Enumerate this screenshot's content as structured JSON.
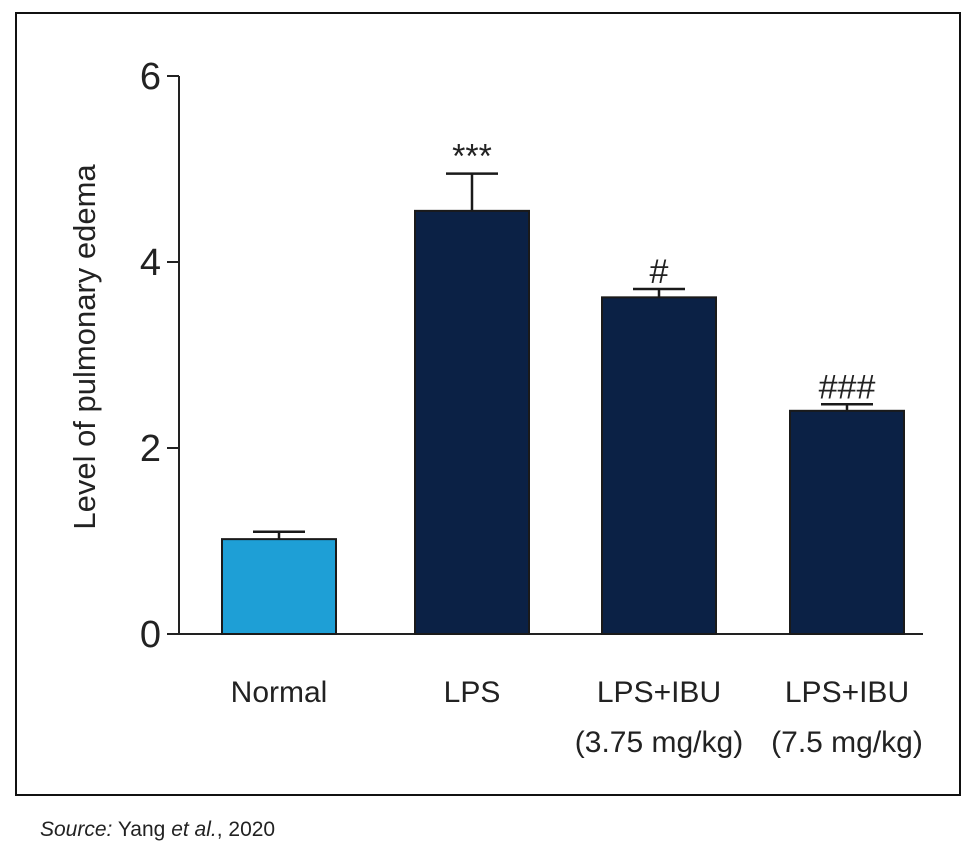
{
  "chart_data": {
    "type": "bar",
    "title": "",
    "xlabel": "",
    "ylabel": "Level of pulmonary edema",
    "ylim": [
      0,
      6
    ],
    "yticks": [
      0,
      2,
      4,
      6
    ],
    "categories": [
      {
        "line1": "Normal",
        "line2": ""
      },
      {
        "line1": "LPS",
        "line2": ""
      },
      {
        "line1": "LPS+IBU",
        "line2": "(3.75 mg/kg)"
      },
      {
        "line1": "LPS+IBU",
        "line2": "(7.5 mg/kg)"
      }
    ],
    "values": [
      1.02,
      4.55,
      3.62,
      2.4
    ],
    "errors": [
      0.08,
      0.4,
      0.09,
      0.07
    ],
    "significance": [
      "",
      "***",
      "#",
      "###"
    ],
    "colors": [
      "#1e9fd6",
      "#0b2145",
      "#0b2145",
      "#0b2145"
    ],
    "grid": false,
    "legend": "none"
  },
  "source": {
    "lead": "Source:",
    "authors": "Yang",
    "etal": "et al.",
    "year": ", 2020"
  }
}
